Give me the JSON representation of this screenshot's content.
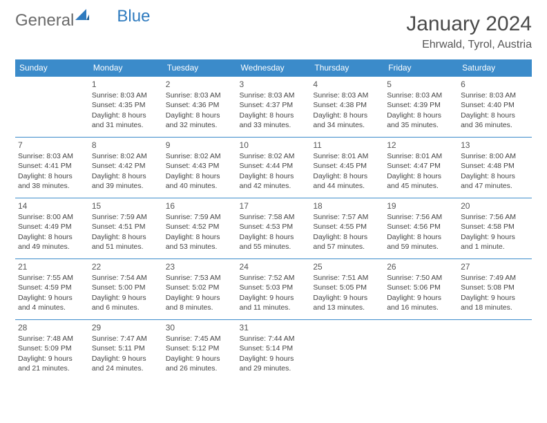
{
  "brand": {
    "part1": "General",
    "part2": "Blue"
  },
  "title": {
    "month": "January 2024",
    "location": "Ehrwald, Tyrol, Austria"
  },
  "colors": {
    "header_bg": "#3b8bca",
    "header_text": "#ffffff",
    "rule": "#3b8bca",
    "text": "#444444",
    "logo_gray": "#6a6a6a",
    "logo_blue": "#2f7bbf",
    "background": "#ffffff"
  },
  "layout": {
    "columns": 7,
    "rows": 5,
    "cell_fontsize": 10.5,
    "daynum_fontsize": 12,
    "header_fontsize": 12,
    "title_fontsize": 30,
    "location_fontsize": 16
  },
  "day_headers": [
    "Sunday",
    "Monday",
    "Tuesday",
    "Wednesday",
    "Thursday",
    "Friday",
    "Saturday"
  ],
  "weeks": [
    [
      {
        "day": "",
        "sunrise": "",
        "sunset": "",
        "daylight": ""
      },
      {
        "day": "1",
        "sunrise": "Sunrise: 8:03 AM",
        "sunset": "Sunset: 4:35 PM",
        "daylight": "Daylight: 8 hours and 31 minutes."
      },
      {
        "day": "2",
        "sunrise": "Sunrise: 8:03 AM",
        "sunset": "Sunset: 4:36 PM",
        "daylight": "Daylight: 8 hours and 32 minutes."
      },
      {
        "day": "3",
        "sunrise": "Sunrise: 8:03 AM",
        "sunset": "Sunset: 4:37 PM",
        "daylight": "Daylight: 8 hours and 33 minutes."
      },
      {
        "day": "4",
        "sunrise": "Sunrise: 8:03 AM",
        "sunset": "Sunset: 4:38 PM",
        "daylight": "Daylight: 8 hours and 34 minutes."
      },
      {
        "day": "5",
        "sunrise": "Sunrise: 8:03 AM",
        "sunset": "Sunset: 4:39 PM",
        "daylight": "Daylight: 8 hours and 35 minutes."
      },
      {
        "day": "6",
        "sunrise": "Sunrise: 8:03 AM",
        "sunset": "Sunset: 4:40 PM",
        "daylight": "Daylight: 8 hours and 36 minutes."
      }
    ],
    [
      {
        "day": "7",
        "sunrise": "Sunrise: 8:03 AM",
        "sunset": "Sunset: 4:41 PM",
        "daylight": "Daylight: 8 hours and 38 minutes."
      },
      {
        "day": "8",
        "sunrise": "Sunrise: 8:02 AM",
        "sunset": "Sunset: 4:42 PM",
        "daylight": "Daylight: 8 hours and 39 minutes."
      },
      {
        "day": "9",
        "sunrise": "Sunrise: 8:02 AM",
        "sunset": "Sunset: 4:43 PM",
        "daylight": "Daylight: 8 hours and 40 minutes."
      },
      {
        "day": "10",
        "sunrise": "Sunrise: 8:02 AM",
        "sunset": "Sunset: 4:44 PM",
        "daylight": "Daylight: 8 hours and 42 minutes."
      },
      {
        "day": "11",
        "sunrise": "Sunrise: 8:01 AM",
        "sunset": "Sunset: 4:45 PM",
        "daylight": "Daylight: 8 hours and 44 minutes."
      },
      {
        "day": "12",
        "sunrise": "Sunrise: 8:01 AM",
        "sunset": "Sunset: 4:47 PM",
        "daylight": "Daylight: 8 hours and 45 minutes."
      },
      {
        "day": "13",
        "sunrise": "Sunrise: 8:00 AM",
        "sunset": "Sunset: 4:48 PM",
        "daylight": "Daylight: 8 hours and 47 minutes."
      }
    ],
    [
      {
        "day": "14",
        "sunrise": "Sunrise: 8:00 AM",
        "sunset": "Sunset: 4:49 PM",
        "daylight": "Daylight: 8 hours and 49 minutes."
      },
      {
        "day": "15",
        "sunrise": "Sunrise: 7:59 AM",
        "sunset": "Sunset: 4:51 PM",
        "daylight": "Daylight: 8 hours and 51 minutes."
      },
      {
        "day": "16",
        "sunrise": "Sunrise: 7:59 AM",
        "sunset": "Sunset: 4:52 PM",
        "daylight": "Daylight: 8 hours and 53 minutes."
      },
      {
        "day": "17",
        "sunrise": "Sunrise: 7:58 AM",
        "sunset": "Sunset: 4:53 PM",
        "daylight": "Daylight: 8 hours and 55 minutes."
      },
      {
        "day": "18",
        "sunrise": "Sunrise: 7:57 AM",
        "sunset": "Sunset: 4:55 PM",
        "daylight": "Daylight: 8 hours and 57 minutes."
      },
      {
        "day": "19",
        "sunrise": "Sunrise: 7:56 AM",
        "sunset": "Sunset: 4:56 PM",
        "daylight": "Daylight: 8 hours and 59 minutes."
      },
      {
        "day": "20",
        "sunrise": "Sunrise: 7:56 AM",
        "sunset": "Sunset: 4:58 PM",
        "daylight": "Daylight: 9 hours and 1 minute."
      }
    ],
    [
      {
        "day": "21",
        "sunrise": "Sunrise: 7:55 AM",
        "sunset": "Sunset: 4:59 PM",
        "daylight": "Daylight: 9 hours and 4 minutes."
      },
      {
        "day": "22",
        "sunrise": "Sunrise: 7:54 AM",
        "sunset": "Sunset: 5:00 PM",
        "daylight": "Daylight: 9 hours and 6 minutes."
      },
      {
        "day": "23",
        "sunrise": "Sunrise: 7:53 AM",
        "sunset": "Sunset: 5:02 PM",
        "daylight": "Daylight: 9 hours and 8 minutes."
      },
      {
        "day": "24",
        "sunrise": "Sunrise: 7:52 AM",
        "sunset": "Sunset: 5:03 PM",
        "daylight": "Daylight: 9 hours and 11 minutes."
      },
      {
        "day": "25",
        "sunrise": "Sunrise: 7:51 AM",
        "sunset": "Sunset: 5:05 PM",
        "daylight": "Daylight: 9 hours and 13 minutes."
      },
      {
        "day": "26",
        "sunrise": "Sunrise: 7:50 AM",
        "sunset": "Sunset: 5:06 PM",
        "daylight": "Daylight: 9 hours and 16 minutes."
      },
      {
        "day": "27",
        "sunrise": "Sunrise: 7:49 AM",
        "sunset": "Sunset: 5:08 PM",
        "daylight": "Daylight: 9 hours and 18 minutes."
      }
    ],
    [
      {
        "day": "28",
        "sunrise": "Sunrise: 7:48 AM",
        "sunset": "Sunset: 5:09 PM",
        "daylight": "Daylight: 9 hours and 21 minutes."
      },
      {
        "day": "29",
        "sunrise": "Sunrise: 7:47 AM",
        "sunset": "Sunset: 5:11 PM",
        "daylight": "Daylight: 9 hours and 24 minutes."
      },
      {
        "day": "30",
        "sunrise": "Sunrise: 7:45 AM",
        "sunset": "Sunset: 5:12 PM",
        "daylight": "Daylight: 9 hours and 26 minutes."
      },
      {
        "day": "31",
        "sunrise": "Sunrise: 7:44 AM",
        "sunset": "Sunset: 5:14 PM",
        "daylight": "Daylight: 9 hours and 29 minutes."
      },
      {
        "day": "",
        "sunrise": "",
        "sunset": "",
        "daylight": ""
      },
      {
        "day": "",
        "sunrise": "",
        "sunset": "",
        "daylight": ""
      },
      {
        "day": "",
        "sunrise": "",
        "sunset": "",
        "daylight": ""
      }
    ]
  ]
}
